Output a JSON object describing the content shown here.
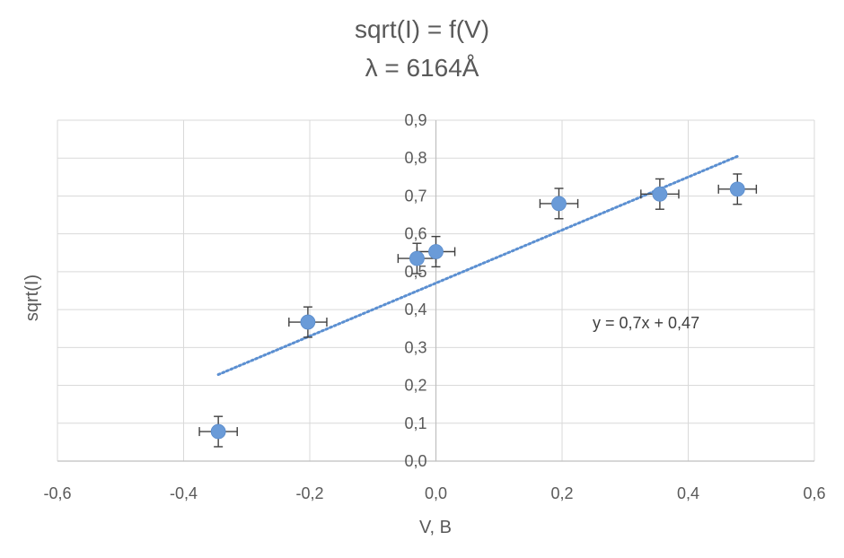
{
  "chart_data": {
    "type": "scatter",
    "title": "sqrt(I) = f(V)",
    "subtitle": "λ = 6164Å",
    "xlabel": "V, B",
    "ylabel": "sqrt(I)",
    "xlim": [
      -0.6,
      0.6
    ],
    "ylim": [
      0.0,
      0.9
    ],
    "x_ticks": [
      "-0,6",
      "-0,4",
      "-0,2",
      "0,0",
      "0,2",
      "0,4",
      "0,6"
    ],
    "y_ticks": [
      "0,0",
      "0,1",
      "0,2",
      "0,3",
      "0,4",
      "0,5",
      "0,6",
      "0,7",
      "0,8",
      "0,9"
    ],
    "grid": true,
    "legend": "none",
    "points_color": "#6a9bd8",
    "trend_color": "#5b8fd1",
    "errorbar_color": "#404040",
    "series": [
      {
        "x": [
          -0.345,
          -0.203,
          -0.03,
          0.0,
          0.195,
          0.355,
          0.478
        ],
        "y": [
          0.078,
          0.367,
          0.535,
          0.553,
          0.68,
          0.705,
          0.718
        ],
        "x_error": 0.03,
        "y_error": 0.04
      }
    ],
    "trendline": {
      "type": "linear",
      "slope": 0.7,
      "intercept": 0.47,
      "x_range": [
        -0.345,
        0.478
      ],
      "equation_label": "y = 0,7x + 0,47"
    }
  }
}
